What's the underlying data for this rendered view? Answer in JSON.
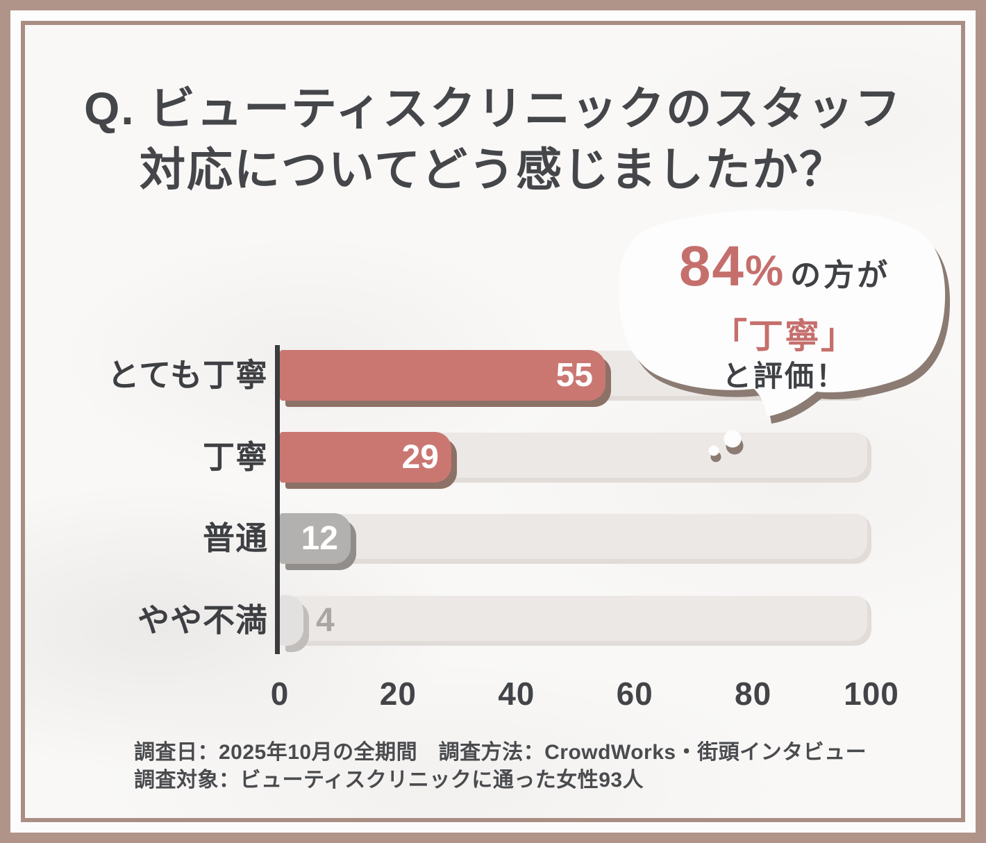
{
  "theme": {
    "frame_outer_color": "#b09489",
    "frame_line_color": "#aa8e84",
    "paper_color": "#f9f8f7",
    "accent_red": "#c56f6d",
    "text_dark": "#3f4145"
  },
  "title": {
    "line1": "Q. ビューティスクリニックのスタッフ",
    "line2": "対応についてどう感じましたか？"
  },
  "bubble": {
    "stat_number": "84",
    "stat_unit": "%",
    "suffix": "の方が",
    "highlight": "「丁寧」",
    "conclusion": "と評価！",
    "accent_color": "#c56f6d",
    "fill_color": "#fdfdfd",
    "shadow_color": "#8b7b72"
  },
  "chart_data": {
    "type": "bar",
    "orientation": "horizontal",
    "title": "Q. ビューティスクリニックのスタッフ対応についてどう感じましたか？",
    "categories": [
      "とても丁寧",
      "丁寧",
      "普通",
      "やや不満"
    ],
    "values": [
      55,
      29,
      12,
      4
    ],
    "bar_colors": [
      "#ca7772",
      "#ca7772",
      "#b3b1af",
      "#e3e1e0"
    ],
    "bar_shadow_colors": [
      "#8c7166",
      "#8c7166",
      "#908d8a",
      "#c0bdbb"
    ],
    "value_inside_color": "#ffffff",
    "value_outside_color": "#a9a7a5",
    "track_color": "#ece8e5",
    "axis_color": "#3b3c3e",
    "xlim": [
      0,
      100
    ],
    "x_tick_labels": [
      "0",
      "20",
      "40",
      "60",
      "80",
      "100"
    ],
    "grid": false,
    "legend": false
  },
  "footer": {
    "line1": "調査日：2025年10月の全期間　調査方法：CrowdWorks・街頭インタビュー",
    "line2": "調査対象：ビューティスクリニックに通った女性93人"
  }
}
